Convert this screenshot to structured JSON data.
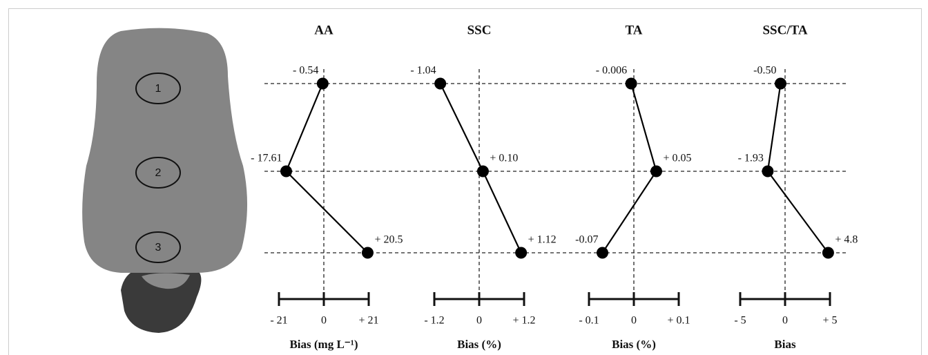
{
  "chart_data": [
    {
      "type": "line",
      "title": "AA",
      "categories": [
        "1",
        "2",
        "3"
      ],
      "values": [
        -0.54,
        -17.61,
        20.5
      ],
      "value_labels": [
        "- 0.54",
        "- 17.61",
        "+ 20.5"
      ],
      "xlim": [
        -21,
        21
      ],
      "xticks": [
        {
          "value": -21,
          "label": "- 21"
        },
        0,
        {
          "value": 21,
          "label": "+ 21"
        }
      ],
      "xlabel": "Bias  (mg L⁻¹)",
      "color": "#000000"
    },
    {
      "type": "line",
      "title": "SSC",
      "values": [
        -1.04,
        0.1,
        1.12
      ],
      "value_labels": [
        "- 1.04",
        "+ 0.10",
        "+ 1.12"
      ],
      "xlim": [
        -1.2,
        1.2
      ],
      "xticks": [
        {
          "value": -1.2,
          "label": "- 1.2"
        },
        0,
        {
          "value": 1.2,
          "label": "+ 1.2"
        }
      ],
      "xlabel": "Bias  (%)",
      "color": "#000000"
    },
    {
      "type": "line",
      "title": "TA",
      "values": [
        -0.006,
        0.05,
        -0.07
      ],
      "value_labels": [
        "- 0.006",
        "+ 0.05",
        "-0.07"
      ],
      "xlim": [
        -0.1,
        0.1
      ],
      "xticks": [
        {
          "value": -0.1,
          "label": "- 0.1"
        },
        0,
        {
          "value": 0.1,
          "label": "+ 0.1"
        }
      ],
      "xlabel": "Bias (%)",
      "color": "#000000"
    },
    {
      "type": "line",
      "title": "SSC/TA",
      "values": [
        -0.5,
        -1.93,
        4.8
      ],
      "value_labels": [
        "-0.50",
        "- 1.93",
        "+ 4.8"
      ],
      "xlim": [
        -5,
        5
      ],
      "xticks": [
        {
          "value": -5,
          "label": "- 5"
        },
        0,
        {
          "value": 5,
          "label": "+ 5"
        }
      ],
      "xlabel": "Bias",
      "color": "#000000"
    }
  ]
}
